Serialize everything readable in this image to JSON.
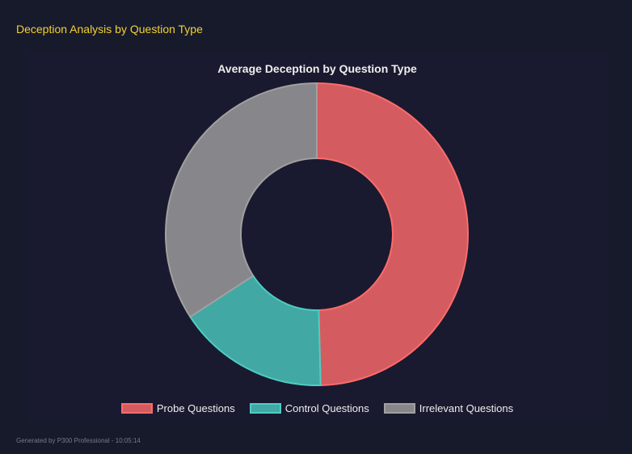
{
  "header": {
    "title": "Deception Analysis by Question Type"
  },
  "footer": {
    "text": "Generated by P300 Professional - 10:05:14"
  },
  "chart_data": {
    "type": "doughnut",
    "title": "Average Deception by Question Type",
    "categories": [
      "Probe Questions",
      "Control Questions",
      "Irrelevant Questions"
    ],
    "values": [
      49.6,
      16.2,
      34.2
    ],
    "colors": [
      "#d45c60",
      "#42a8a4",
      "#87868b"
    ],
    "border_colors": [
      "#ff6b6b",
      "#4ecdc4",
      "#a0a0a0"
    ],
    "legend": "bottom"
  }
}
